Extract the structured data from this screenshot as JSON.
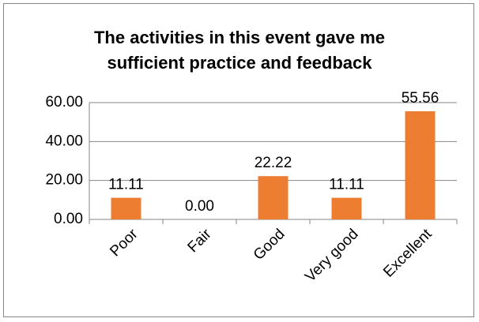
{
  "chart_data": {
    "type": "bar",
    "title": "The activities in this event gave me sufficient practice and feedback",
    "categories": [
      "Poor",
      "Fair",
      "Good",
      "Very good",
      "Excellent"
    ],
    "values": [
      11.11,
      0,
      22.22,
      11.11,
      55.56
    ],
    "value_labels": [
      "11.11",
      "0.00",
      "22.22",
      "11.11",
      "55.56"
    ],
    "color": "#ED7D31",
    "ylim": [
      0,
      60
    ],
    "yticks": [
      {
        "value": 0,
        "label": "0.00"
      },
      {
        "value": 20,
        "label": "20.00"
      },
      {
        "value": 40,
        "label": "40.00"
      },
      {
        "value": 60,
        "label": "60.00"
      }
    ],
    "grid": true
  }
}
